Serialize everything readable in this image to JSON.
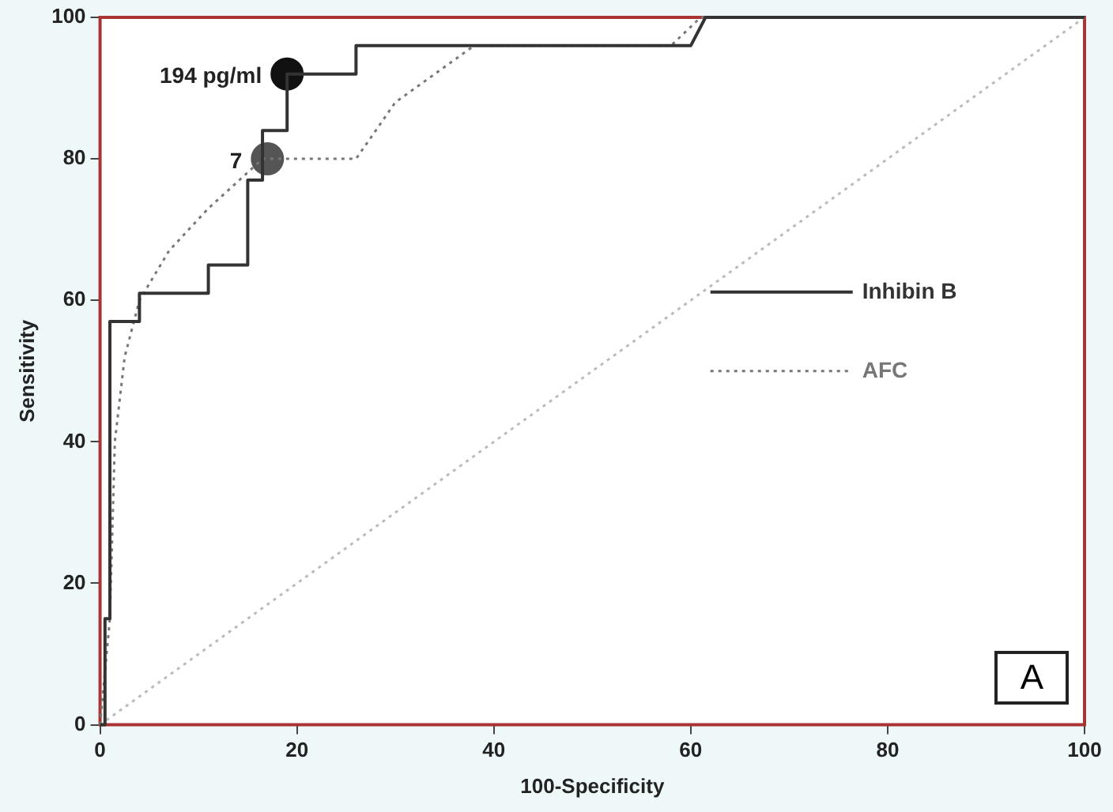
{
  "chart_data": {
    "type": "line",
    "xlabel": "100-Specificity",
    "ylabel": "Sensitivity",
    "xlim": [
      0,
      100
    ],
    "ylim": [
      0,
      100
    ],
    "xticks": [
      0,
      20,
      40,
      60,
      80,
      100
    ],
    "yticks": [
      0,
      20,
      40,
      60,
      80,
      100
    ],
    "grid": false,
    "legend": "right",
    "marker": "none",
    "series": [
      {
        "name": "Inhibin B",
        "color": "#333333",
        "line_style": "solid",
        "x": [
          0,
          0.5,
          0.5,
          1,
          1,
          4,
          4,
          11,
          11,
          15,
          15,
          16.5,
          16.5,
          19,
          19,
          26,
          26,
          60,
          61.5,
          100
        ],
        "values": [
          0,
          0,
          15,
          15,
          57,
          57,
          61,
          61,
          65,
          65,
          77,
          77,
          84,
          84,
          92,
          92,
          96,
          96,
          100,
          100
        ]
      },
      {
        "name": "AFC",
        "color": "#777777",
        "line_style": "dotted",
        "x": [
          0,
          1,
          1.5,
          2.5,
          4,
          7,
          11,
          16.5,
          26,
          30,
          38,
          58,
          61,
          100
        ],
        "values": [
          0,
          15,
          40,
          52,
          60,
          67,
          73,
          80,
          80,
          88,
          96,
          96,
          100,
          100
        ]
      },
      {
        "type": "line",
        "color": "#bbbbbb",
        "line_style": "dotted",
        "x": [
          0,
          100
        ],
        "values": [
          0,
          100
        ]
      },
      {
        "type": "scatter",
        "color": "#111111",
        "marker": "circle",
        "x": [
          19
        ],
        "values": [
          92
        ]
      },
      {
        "type": "scatter",
        "color": "#555555",
        "marker": "circle",
        "x": [
          17
        ],
        "values": [
          80
        ]
      }
    ],
    "annotations": [
      {
        "text": "194 pg/ml",
        "x": 19,
        "y": 92
      },
      {
        "text": "7",
        "x": 17,
        "y": 80
      },
      "A"
    ]
  }
}
